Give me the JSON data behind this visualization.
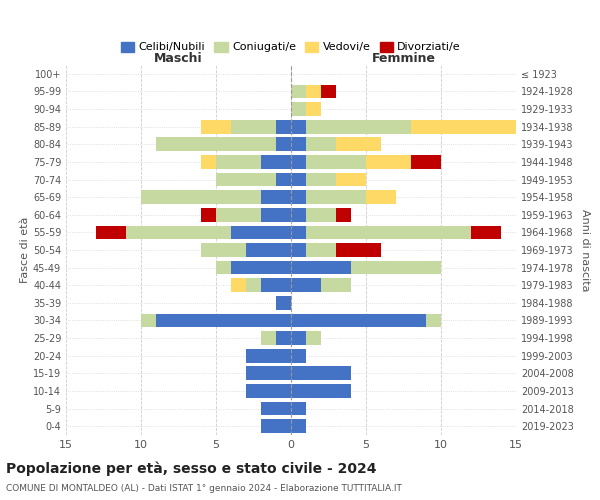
{
  "age_groups": [
    "100+",
    "95-99",
    "90-94",
    "85-89",
    "80-84",
    "75-79",
    "70-74",
    "65-69",
    "60-64",
    "55-59",
    "50-54",
    "45-49",
    "40-44",
    "35-39",
    "30-34",
    "25-29",
    "20-24",
    "15-19",
    "10-14",
    "5-9",
    "0-4"
  ],
  "birth_years": [
    "≤ 1923",
    "1924-1928",
    "1929-1933",
    "1934-1938",
    "1939-1943",
    "1944-1948",
    "1949-1953",
    "1954-1958",
    "1959-1963",
    "1964-1968",
    "1969-1973",
    "1974-1978",
    "1979-1983",
    "1984-1988",
    "1989-1993",
    "1994-1998",
    "1999-2003",
    "2004-2008",
    "2009-2013",
    "2014-2018",
    "2019-2023"
  ],
  "male": {
    "celibi": [
      0,
      0,
      0,
      1,
      1,
      2,
      1,
      2,
      2,
      4,
      3,
      4,
      2,
      1,
      9,
      1,
      3,
      3,
      3,
      2,
      2
    ],
    "coniugati": [
      0,
      0,
      0,
      3,
      8,
      3,
      4,
      8,
      3,
      7,
      3,
      1,
      1,
      0,
      1,
      1,
      0,
      0,
      0,
      0,
      0
    ],
    "vedovi": [
      0,
      0,
      0,
      2,
      0,
      1,
      0,
      0,
      0,
      0,
      0,
      0,
      1,
      0,
      0,
      0,
      0,
      0,
      0,
      0,
      0
    ],
    "divorziati": [
      0,
      0,
      0,
      0,
      0,
      0,
      0,
      0,
      1,
      2,
      0,
      0,
      0,
      0,
      0,
      0,
      0,
      0,
      0,
      0,
      0
    ]
  },
  "female": {
    "nubili": [
      0,
      0,
      0,
      1,
      1,
      1,
      1,
      1,
      1,
      1,
      1,
      4,
      2,
      0,
      9,
      1,
      1,
      4,
      4,
      1,
      1
    ],
    "coniugate": [
      0,
      1,
      1,
      7,
      2,
      4,
      2,
      4,
      2,
      11,
      2,
      6,
      2,
      0,
      1,
      1,
      0,
      0,
      0,
      0,
      0
    ],
    "vedove": [
      0,
      1,
      1,
      8,
      3,
      3,
      2,
      2,
      0,
      0,
      0,
      0,
      0,
      0,
      0,
      0,
      0,
      0,
      0,
      0,
      0
    ],
    "divorziate": [
      0,
      1,
      0,
      0,
      0,
      2,
      0,
      0,
      1,
      2,
      3,
      0,
      0,
      0,
      0,
      0,
      0,
      0,
      0,
      0,
      0
    ]
  },
  "colors": {
    "celibi": "#4472C4",
    "coniugati": "#c5d9a0",
    "vedovi": "#FFD966",
    "divorziati": "#C00000"
  },
  "title": "Popolazione per età, sesso e stato civile - 2024",
  "subtitle": "COMUNE DI MONTALDEO (AL) - Dati ISTAT 1° gennaio 2024 - Elaborazione TUTTITALIA.IT",
  "xlabel_male": "Maschi",
  "xlabel_female": "Femmine",
  "ylabel_left": "Fasce di età",
  "ylabel_right": "Anni di nascita",
  "xlim": 15,
  "legend_labels": [
    "Celibi/Nubili",
    "Coniugati/e",
    "Vedovi/e",
    "Divorziati/e"
  ],
  "bg_color": "#ffffff",
  "grid_color": "#cccccc"
}
